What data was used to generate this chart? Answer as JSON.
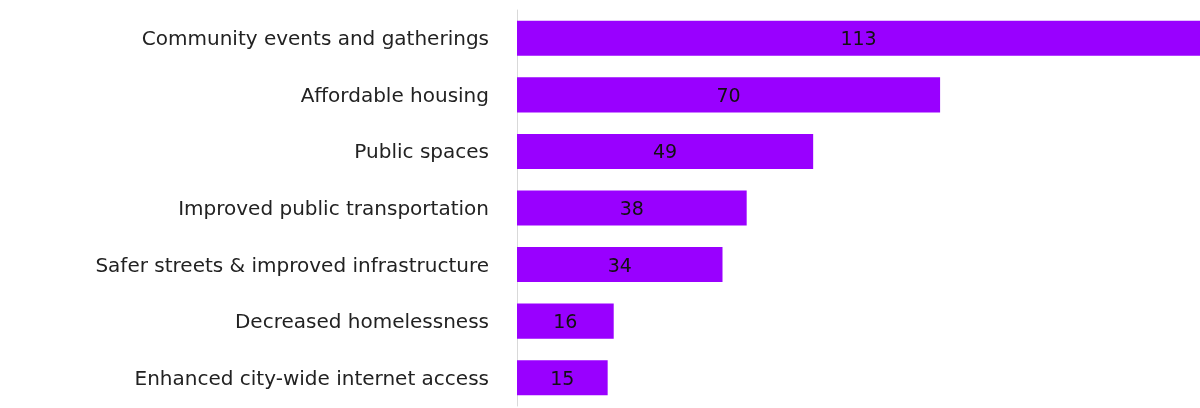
{
  "chart_data": {
    "type": "bar",
    "orientation": "horizontal",
    "categories": [
      "Community events and gatherings",
      "Affordable housing",
      "Public spaces",
      "Improved public transportation",
      "Safer streets & improved infrastructure",
      "Decreased homelessness",
      "Enhanced city-wide internet access"
    ],
    "values": [
      113,
      70,
      49,
      38,
      34,
      16,
      15
    ],
    "color": "#9900ff",
    "data_labels": true
  }
}
